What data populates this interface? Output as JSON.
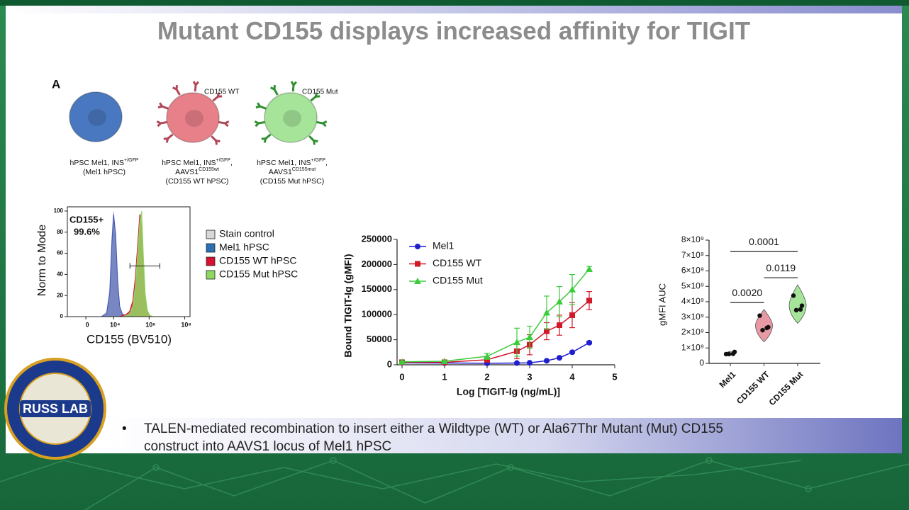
{
  "title": "Mutant CD155 displays increased affinity for TIGIT",
  "panel_label": "A",
  "cells": [
    {
      "color": "#4a78c0",
      "caption": [
        [
          {
            "text": "hPSC Mel1, INS"
          },
          {
            "text": "+/GFP",
            "sup": true
          }
        ],
        [
          {
            "text": "(Mel1 hPSC)"
          }
        ]
      ]
    },
    {
      "color": "#e8808a",
      "receptor_color": "#b04858",
      "tag": "CD155 WT",
      "caption": [
        [
          {
            "text": "hPSC Mel1, INS"
          },
          {
            "text": "+/GFP",
            "sup": true
          },
          {
            "text": ","
          }
        ],
        [
          {
            "text": "AAVS1"
          },
          {
            "text": "CD155wt",
            "sup": true
          }
        ],
        [
          {
            "text": "(CD155 WT hPSC)"
          }
        ]
      ]
    },
    {
      "color": "#a6e49a",
      "receptor_color": "#2f8f2f",
      "tag": "CD155 Mut",
      "caption": [
        [
          {
            "text": "hPSC Mel1, INS"
          },
          {
            "text": "+/GFP",
            "sup": true
          },
          {
            "text": ","
          }
        ],
        [
          {
            "text": "AAVS1"
          },
          {
            "text": "CD155mut",
            "sup": true
          }
        ],
        [
          {
            "text": "(CD155 Mut hPSC)"
          }
        ]
      ]
    }
  ],
  "logo": {
    "text": "RUSS LAB"
  },
  "bullet": [
    "TALEN-mediated recombination to insert either a Wildtype (WT) or Ala67Thr Mutant (Mut) CD155",
    "construct into AAVS1 locus of Mel1 hPSC"
  ],
  "chart_data": [
    {
      "type": "area",
      "x_label": "CD155 (BV510)",
      "y_label": "Norm to Mode",
      "xscale": "biexponential",
      "annotation": [
        "CD155+",
        "99.6%"
      ],
      "x": [
        2000,
        4000,
        6000,
        8000,
        10000,
        13000,
        17000,
        22000,
        30000,
        50000,
        80000,
        120000,
        170000,
        230000,
        300000,
        380000,
        470000,
        600000,
        800000,
        1100000,
        1600000
      ],
      "series": [
        {
          "name": "Stain control",
          "color": "#c8c8c8",
          "legend_color": "#d8d8d8",
          "values": [
            0,
            4,
            25,
            75,
            100,
            72,
            30,
            8,
            2,
            0,
            0,
            0,
            0,
            0,
            0,
            0,
            0,
            0,
            0,
            0,
            0
          ]
        },
        {
          "name": "Mel1 hPSC",
          "color": "#3d55b8",
          "legend_color": "#2a6fb0",
          "values": [
            0,
            3,
            22,
            70,
            97,
            78,
            34,
            10,
            3,
            0,
            0,
            0,
            0,
            0,
            0,
            0,
            0,
            0,
            0,
            0,
            0
          ]
        },
        {
          "name": "CD155 WT hPSC",
          "color": "#d81030",
          "legend_color": "#d81030",
          "values": [
            0,
            0,
            0,
            0,
            0,
            0,
            0,
            0,
            1,
            2,
            5,
            15,
            38,
            70,
            97,
            85,
            45,
            15,
            4,
            1,
            0
          ]
        },
        {
          "name": "CD155 Mut hPSC",
          "color": "#8fd860",
          "legend_color": "#8fd860",
          "values": [
            0,
            0,
            0,
            0,
            0,
            0,
            0,
            0,
            0,
            1,
            3,
            10,
            30,
            62,
            90,
            100,
            60,
            22,
            6,
            1,
            0
          ]
        }
      ],
      "gate": {
        "x": [
          83000,
          4000000
        ],
        "y": 48
      },
      "xlim": [
        -3000,
        200000000
      ],
      "xticks": [
        0,
        {
          "value": 10000,
          "label": "10⁴"
        },
        {
          "value": 1000000,
          "label": "10⁶"
        },
        {
          "value": 100000000,
          "label": "10⁸"
        }
      ],
      "ylim": [
        0,
        104
      ],
      "yticks": [
        0,
        20,
        40,
        60,
        80,
        100
      ],
      "legend": "right"
    },
    {
      "type": "line",
      "x_label": "Log [TIGIT-Ig (ng/mL)]",
      "y_label": "Bound TIGIT-Ig (gMFI)",
      "x": [
        0,
        1,
        2,
        2.7,
        3,
        3.4,
        3.7,
        4,
        4.4
      ],
      "series": [
        {
          "name": "Mel1",
          "color": "#1f1fd0",
          "marker": "circle",
          "values": [
            4000,
            3500,
            3000,
            3500,
            4000,
            8000,
            14000,
            25000,
            44000
          ],
          "errors": [
            500,
            500,
            500,
            500,
            500,
            1000,
            1500,
            2000,
            2500
          ]
        },
        {
          "name": "CD155 WT",
          "color": "#d01a2a",
          "marker": "square",
          "values": [
            5000,
            5000,
            10000,
            27000,
            40000,
            67000,
            79000,
            99000,
            128000
          ],
          "errors": [
            1000,
            1000,
            3000,
            15000,
            20000,
            17000,
            20000,
            25000,
            18000
          ]
        },
        {
          "name": "CD155 Mut",
          "color": "#3ccc3c",
          "marker": "triangle",
          "values": [
            6000,
            7000,
            17000,
            45000,
            55000,
            104000,
            126000,
            150000,
            191000
          ],
          "errors": [
            1000,
            1000,
            6000,
            28000,
            22000,
            33000,
            30000,
            30000,
            5000
          ]
        }
      ],
      "xlim": [
        0,
        5
      ],
      "xticks": [
        0,
        1,
        2,
        3,
        4,
        5
      ],
      "ylim": [
        0,
        250000
      ],
      "yticks": [
        0,
        50000,
        100000,
        150000,
        200000,
        250000
      ],
      "legend": "upper left"
    },
    {
      "type": "violin",
      "y_label": "gMFI AUC",
      "categories": [
        "Mel1",
        "CD155 WT",
        "CD155 Mut"
      ],
      "colors": [
        "#c8c8d8",
        "#e89aa4",
        "#a6e49a"
      ],
      "points": [
        [
          600000000,
          700000000,
          650000000,
          620000000
        ],
        [
          3100000000,
          2300000000,
          2200000000,
          2300000000
        ],
        [
          4400000000,
          3700000000,
          3500000000,
          3500000000
        ]
      ],
      "ranges": [
        [
          520000000,
          780000000
        ],
        [
          1400000000,
          3500000000
        ],
        [
          2600000000,
          5100000000
        ]
      ],
      "comparisons": [
        {
          "groups": [
            0,
            1
          ],
          "y": 3950000000,
          "label": "0.0020"
        },
        {
          "groups": [
            1,
            2
          ],
          "y": 5560000000,
          "label": "0.0119"
        },
        {
          "groups": [
            0,
            2
          ],
          "y": 7260000000,
          "label": "0.0001"
        }
      ],
      "ylim": [
        0,
        8000000000
      ],
      "yticks": [
        0,
        {
          "value": 1000000000,
          "label": "1×10⁹"
        },
        {
          "value": 2000000000,
          "label": "2×10⁹"
        },
        {
          "value": 3000000000,
          "label": "3×10⁹"
        },
        {
          "value": 4000000000,
          "label": "4×10⁹"
        },
        {
          "value": 5000000000,
          "label": "5×10⁹"
        },
        {
          "value": 6000000000,
          "label": "6×10⁹"
        },
        {
          "value": 7000000000,
          "label": "7×10⁹"
        },
        {
          "value": 8000000000,
          "label": "8×10⁹"
        }
      ]
    }
  ]
}
